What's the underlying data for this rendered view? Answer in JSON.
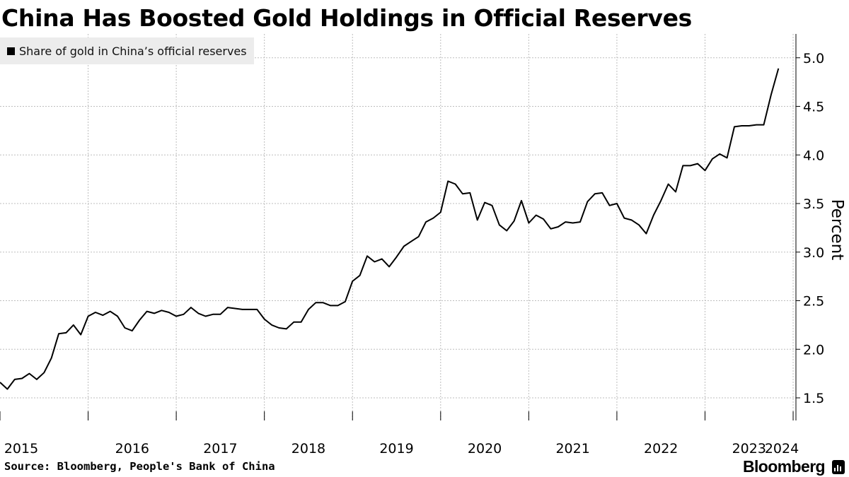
{
  "header": {
    "title": "China Has Boosted Gold Holdings in Official Reserves"
  },
  "footer": {
    "source": "Source: Bloomberg, People's Bank of China",
    "brand": "Bloomberg",
    "brand_icon": "bloomberg-terminal-icon"
  },
  "colors": {
    "line": "#000000",
    "grid": "#bdbdbd",
    "legend_bg": "#ececec",
    "background": "#ffffff"
  },
  "chart_data": {
    "type": "line",
    "title": "China Has Boosted Gold Holdings in Official Reserves",
    "ylabel": "Percent",
    "xlabel": "",
    "ylim": [
      1.25,
      5.25
    ],
    "y_ticks": [
      "1.5",
      "2.0",
      "2.5",
      "3.0",
      "3.5",
      "4.0",
      "4.5",
      "5.0"
    ],
    "x_ticks": [
      "2015",
      "2016",
      "2017",
      "2018",
      "2019",
      "2020",
      "2021",
      "2022",
      "2023",
      "2024"
    ],
    "grid": true,
    "y_axis_position": "right",
    "legend_position": "top-left",
    "frequency": "monthly, starting 2015-01",
    "series": [
      {
        "name": "Share of gold in China’s official reserves",
        "values": [
          1.66,
          1.59,
          1.69,
          1.7,
          1.75,
          1.69,
          1.76,
          1.91,
          2.16,
          2.17,
          2.25,
          2.15,
          2.34,
          2.38,
          2.35,
          2.39,
          2.34,
          2.22,
          2.19,
          2.3,
          2.39,
          2.37,
          2.4,
          2.38,
          2.34,
          2.36,
          2.43,
          2.37,
          2.34,
          2.36,
          2.36,
          2.43,
          2.42,
          2.41,
          2.41,
          2.41,
          2.31,
          2.25,
          2.22,
          2.21,
          2.28,
          2.28,
          2.41,
          2.48,
          2.48,
          2.45,
          2.45,
          2.49,
          2.7,
          2.76,
          2.96,
          2.9,
          2.93,
          2.85,
          2.95,
          3.06,
          3.11,
          3.16,
          3.31,
          3.35,
          3.41,
          3.73,
          3.7,
          3.6,
          3.61,
          3.33,
          3.51,
          3.48,
          3.28,
          3.22,
          3.32,
          3.53,
          3.3,
          3.38,
          3.34,
          3.24,
          3.26,
          3.31,
          3.3,
          3.31,
          3.52,
          3.6,
          3.61,
          3.48,
          3.5,
          3.35,
          3.33,
          3.28,
          3.19,
          3.38,
          3.53,
          3.7,
          3.62,
          3.89,
          3.89,
          3.91,
          3.84,
          3.96,
          4.01,
          3.97,
          4.29,
          4.3,
          4.3,
          4.31,
          4.31,
          4.62,
          4.89
        ]
      }
    ]
  }
}
